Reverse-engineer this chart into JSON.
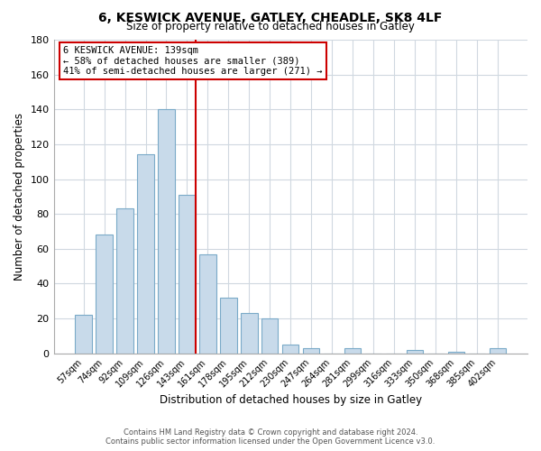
{
  "title": "6, KESWICK AVENUE, GATLEY, CHEADLE, SK8 4LF",
  "subtitle": "Size of property relative to detached houses in Gatley",
  "xlabel": "Distribution of detached houses by size in Gatley",
  "ylabel": "Number of detached properties",
  "bar_labels": [
    "57sqm",
    "74sqm",
    "92sqm",
    "109sqm",
    "126sqm",
    "143sqm",
    "161sqm",
    "178sqm",
    "195sqm",
    "212sqm",
    "230sqm",
    "247sqm",
    "264sqm",
    "281sqm",
    "299sqm",
    "316sqm",
    "333sqm",
    "350sqm",
    "368sqm",
    "385sqm",
    "402sqm"
  ],
  "bar_values": [
    22,
    68,
    83,
    114,
    140,
    91,
    57,
    32,
    23,
    20,
    5,
    3,
    0,
    3,
    0,
    0,
    2,
    0,
    1,
    0,
    3
  ],
  "bar_color": "#c8daea",
  "bar_edge_color": "#7aaac8",
  "vline_x_index": 5,
  "vline_bar_width": 0.8,
  "vline_color": "#cc0000",
  "annotation_title": "6 KESWICK AVENUE: 139sqm",
  "annotation_line1": "← 58% of detached houses are smaller (389)",
  "annotation_line2": "41% of semi-detached houses are larger (271) →",
  "annotation_box_color": "#ffffff",
  "annotation_border_color": "#cc0000",
  "ylim": [
    0,
    180
  ],
  "yticks": [
    0,
    20,
    40,
    60,
    80,
    100,
    120,
    140,
    160,
    180
  ],
  "footer1": "Contains HM Land Registry data © Crown copyright and database right 2024.",
  "footer2": "Contains public sector information licensed under the Open Government Licence v3.0.",
  "background_color": "#ffffff",
  "grid_color": "#d0d8e0"
}
